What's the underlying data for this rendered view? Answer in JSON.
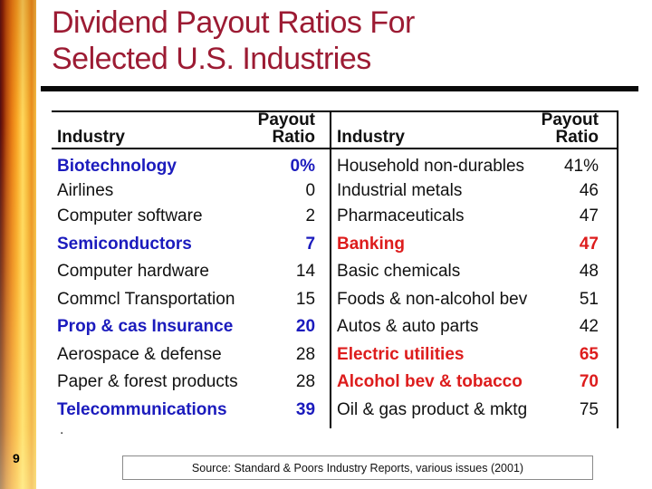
{
  "slide": {
    "title_line1": "Dividend Payout Ratios For",
    "title_line2": "Selected U.S. Industries",
    "page_number": "9",
    "source_note": "Source: Standard & Poors Industry Reports, various issues (2001)",
    "stray_mark": "."
  },
  "colors": {
    "title": "#9c1b33",
    "hl_blue": "#1b1bbd",
    "hl_red": "#dd1c1c",
    "body_text": "#111111",
    "strip_orange": "#f09522",
    "strip_yellow": "#ffd95e"
  },
  "tables": {
    "left": {
      "header_industry": "Industry",
      "header_payout_line1": "Payout",
      "header_payout_line2": "Ratio",
      "rows": [
        {
          "industry": "Biotechnology",
          "ratio": "0%",
          "highlight": "blue"
        },
        {
          "industry": "Airlines",
          "ratio": "0",
          "highlight": null
        },
        {
          "industry": "Computer software",
          "ratio": "2",
          "highlight": null
        },
        {
          "industry": "Semiconductors",
          "ratio": "7",
          "highlight": "blue"
        },
        {
          "industry": "Computer hardware",
          "ratio": "14",
          "highlight": null
        },
        {
          "industry": "Commcl Transportation",
          "ratio": "15",
          "highlight": null
        },
        {
          "industry": "Prop & cas Insurance",
          "ratio": "20",
          "highlight": "blue"
        },
        {
          "industry": "Aerospace & defense",
          "ratio": "28",
          "highlight": null
        },
        {
          "industry": "Paper & forest products",
          "ratio": "28",
          "highlight": null
        },
        {
          "industry": "Telecommunications",
          "ratio": "39",
          "highlight": "blue"
        }
      ]
    },
    "right": {
      "header_industry": "Industry",
      "header_payout_line1": "Payout",
      "header_payout_line2": "Ratio",
      "rows": [
        {
          "industry": "Household non-durables",
          "ratio": "41%",
          "highlight": null
        },
        {
          "industry": "Industrial metals",
          "ratio": "46",
          "highlight": null
        },
        {
          "industry": "Pharmaceuticals",
          "ratio": "47",
          "highlight": null
        },
        {
          "industry": "Banking",
          "ratio": "47",
          "highlight": "red"
        },
        {
          "industry": "Basic chemicals",
          "ratio": "48",
          "highlight": null
        },
        {
          "industry": "Foods & non-alcohol bev",
          "ratio": "51",
          "highlight": null
        },
        {
          "industry": "Autos & auto parts",
          "ratio": "42",
          "highlight": null
        },
        {
          "industry": "Electric utilities",
          "ratio": "65",
          "highlight": "red"
        },
        {
          "industry": "Alcohol bev & tobacco",
          "ratio": "70",
          "highlight": "red"
        },
        {
          "industry": "Oil & gas product & mktg",
          "ratio": "75",
          "highlight": null
        }
      ]
    }
  }
}
